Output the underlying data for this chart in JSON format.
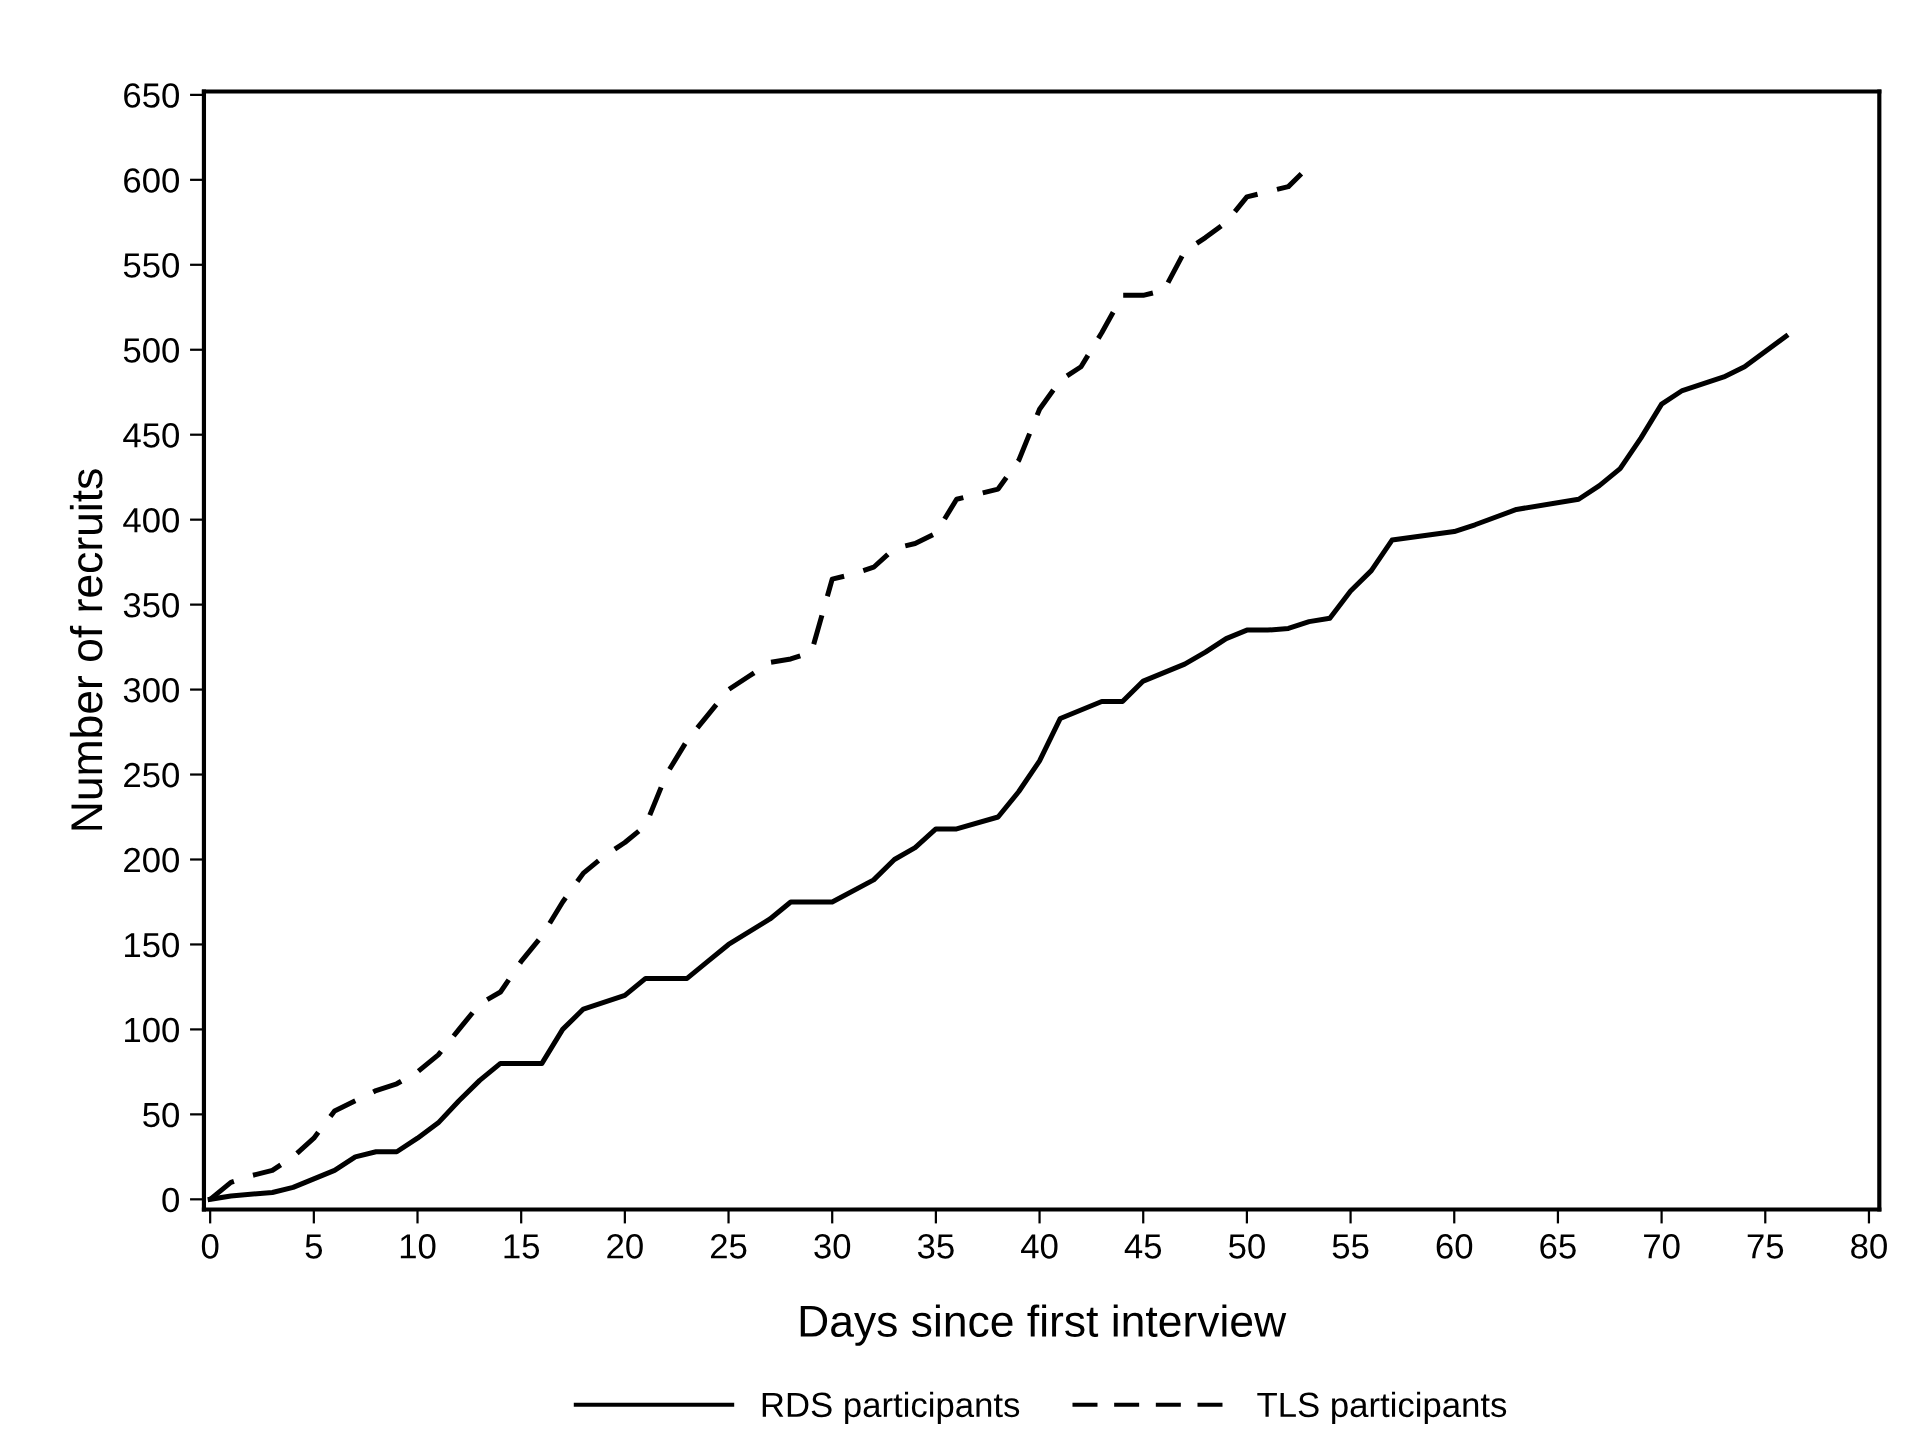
{
  "chart_data": {
    "type": "line",
    "xlabel": "Days since first interview",
    "ylabel": "Number of recruits",
    "xlim": [
      -0.3,
      80.5
    ],
    "ylim": [
      -6,
      652
    ],
    "xticks": [
      0,
      5,
      10,
      15,
      20,
      25,
      30,
      35,
      40,
      45,
      50,
      55,
      60,
      65,
      70,
      75,
      80
    ],
    "yticks": [
      0,
      50,
      100,
      150,
      200,
      250,
      300,
      350,
      400,
      450,
      500,
      550,
      600,
      650
    ],
    "grid": false,
    "legend": "bottom",
    "marker": "none",
    "series": [
      {
        "name": "RDS participants",
        "color": "#000000",
        "line_style": "solid",
        "x": [
          0,
          1,
          3,
          4,
          5,
          6,
          7,
          8,
          9,
          10,
          11,
          12,
          13,
          14,
          15,
          16,
          17,
          18,
          20,
          21,
          23,
          24,
          25,
          27,
          28,
          30,
          32,
          33,
          34,
          35,
          36,
          38,
          39,
          40,
          41,
          43,
          44,
          45,
          47,
          48,
          49,
          50,
          51,
          52,
          53,
          54,
          55,
          56,
          57,
          60,
          61,
          63,
          66,
          67,
          68,
          69,
          70,
          71,
          73,
          74,
          76
        ],
        "values": [
          0,
          2,
          4,
          7,
          12,
          17,
          25,
          28,
          28,
          36,
          45,
          58,
          70,
          80,
          80,
          80,
          100,
          112,
          120,
          130,
          130,
          140,
          150,
          165,
          175,
          175,
          188,
          200,
          207,
          218,
          218,
          225,
          240,
          258,
          283,
          293,
          293,
          305,
          315,
          322,
          330,
          335,
          335,
          336,
          340,
          342,
          358,
          370,
          388,
          393,
          397,
          406,
          412,
          420,
          430,
          448,
          468,
          476,
          484,
          490,
          508
        ]
      },
      {
        "name": "TLS participants",
        "color": "#000000",
        "line_style": "dashed",
        "x": [
          0,
          1,
          2,
          3,
          4,
          5,
          6,
          7,
          8,
          9,
          10,
          11,
          12,
          13,
          14,
          15,
          16,
          17,
          18,
          19,
          20,
          21,
          22,
          23,
          24,
          25,
          26,
          27,
          28,
          29,
          30,
          31,
          32,
          33,
          34,
          35,
          36,
          38,
          39,
          40,
          41,
          42,
          43,
          44,
          45,
          46,
          47,
          48,
          49,
          50,
          52,
          53
        ],
        "values": [
          0,
          10,
          14,
          17,
          25,
          36,
          52,
          58,
          64,
          68,
          75,
          85,
          100,
          115,
          122,
          140,
          155,
          175,
          192,
          202,
          210,
          220,
          250,
          270,
          285,
          300,
          308,
          316,
          318,
          322,
          365,
          368,
          372,
          383,
          386,
          392,
          412,
          418,
          435,
          465,
          482,
          490,
          510,
          532,
          532,
          535,
          558,
          566,
          575,
          590,
          596,
          608
        ]
      }
    ]
  }
}
